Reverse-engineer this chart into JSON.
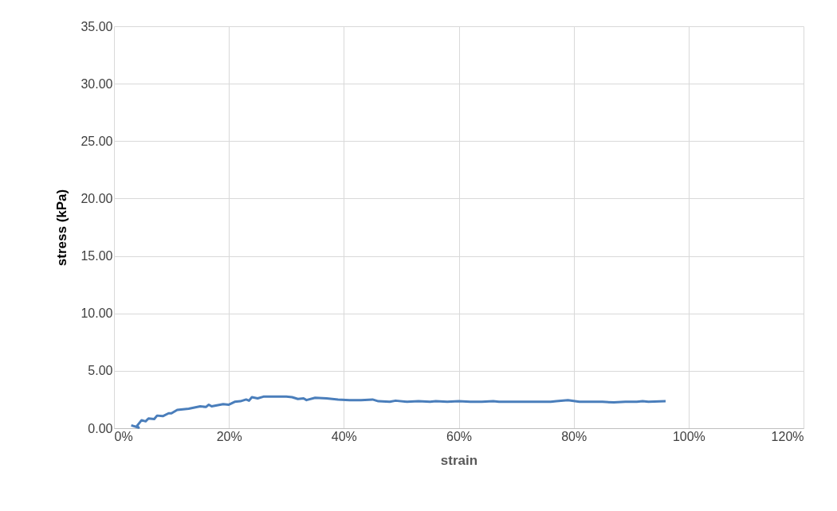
{
  "chart_data": {
    "type": "line",
    "xlabel": "strain",
    "ylabel": "stress (kPa)",
    "x": [
      0.03,
      0.043,
      0.04,
      0.048,
      0.055,
      0.06,
      0.07,
      0.075,
      0.085,
      0.095,
      0.1,
      0.11,
      0.13,
      0.15,
      0.16,
      0.165,
      0.17,
      0.19,
      0.2,
      0.21,
      0.22,
      0.23,
      0.235,
      0.24,
      0.25,
      0.26,
      0.28,
      0.3,
      0.31,
      0.32,
      0.33,
      0.335,
      0.35,
      0.37,
      0.39,
      0.41,
      0.43,
      0.45,
      0.46,
      0.48,
      0.49,
      0.51,
      0.53,
      0.55,
      0.56,
      0.58,
      0.6,
      0.62,
      0.64,
      0.66,
      0.67,
      0.7,
      0.72,
      0.74,
      0.76,
      0.77,
      0.79,
      0.81,
      0.83,
      0.85,
      0.87,
      0.89,
      0.91,
      0.92,
      0.93,
      0.96
    ],
    "series": [
      {
        "color": "#4a7ebb",
        "values": [
          0.25,
          0.05,
          0.2,
          0.7,
          0.6,
          0.85,
          0.8,
          1.1,
          1.05,
          1.3,
          1.3,
          1.6,
          1.7,
          1.9,
          1.85,
          2.05,
          1.9,
          2.1,
          2.05,
          2.3,
          2.35,
          2.5,
          2.4,
          2.7,
          2.6,
          2.75,
          2.75,
          2.75,
          2.7,
          2.55,
          2.6,
          2.45,
          2.65,
          2.6,
          2.5,
          2.45,
          2.45,
          2.5,
          2.35,
          2.3,
          2.4,
          2.3,
          2.35,
          2.3,
          2.35,
          2.3,
          2.35,
          2.3,
          2.3,
          2.35,
          2.3,
          2.3,
          2.3,
          2.3,
          2.3,
          2.35,
          2.45,
          2.3,
          2.3,
          2.3,
          2.25,
          2.3,
          2.3,
          2.35,
          2.3,
          2.35
        ]
      }
    ],
    "xlim": [
      0,
      1.2
    ],
    "xticks": [
      {
        "value": 0,
        "label": "0%"
      },
      {
        "value": 0.2,
        "label": "20%"
      },
      {
        "value": 0.4,
        "label": "40%"
      },
      {
        "value": 0.6,
        "label": "60%"
      },
      {
        "value": 0.8,
        "label": "80%"
      },
      {
        "value": 1.0,
        "label": "100%"
      },
      {
        "value": 1.2,
        "label": "120%"
      }
    ],
    "ylim": [
      0,
      35
    ],
    "yticks": [
      {
        "value": 0,
        "label": "0.00"
      },
      {
        "value": 5,
        "label": "5.00"
      },
      {
        "value": 10,
        "label": "10.00"
      },
      {
        "value": 15,
        "label": "15.00"
      },
      {
        "value": 20,
        "label": "20.00"
      },
      {
        "value": 25,
        "label": "25.00"
      },
      {
        "value": 30,
        "label": "30.00"
      },
      {
        "value": 35,
        "label": "35.00"
      }
    ],
    "grid": true,
    "marker": "none",
    "line_style": "solid"
  }
}
